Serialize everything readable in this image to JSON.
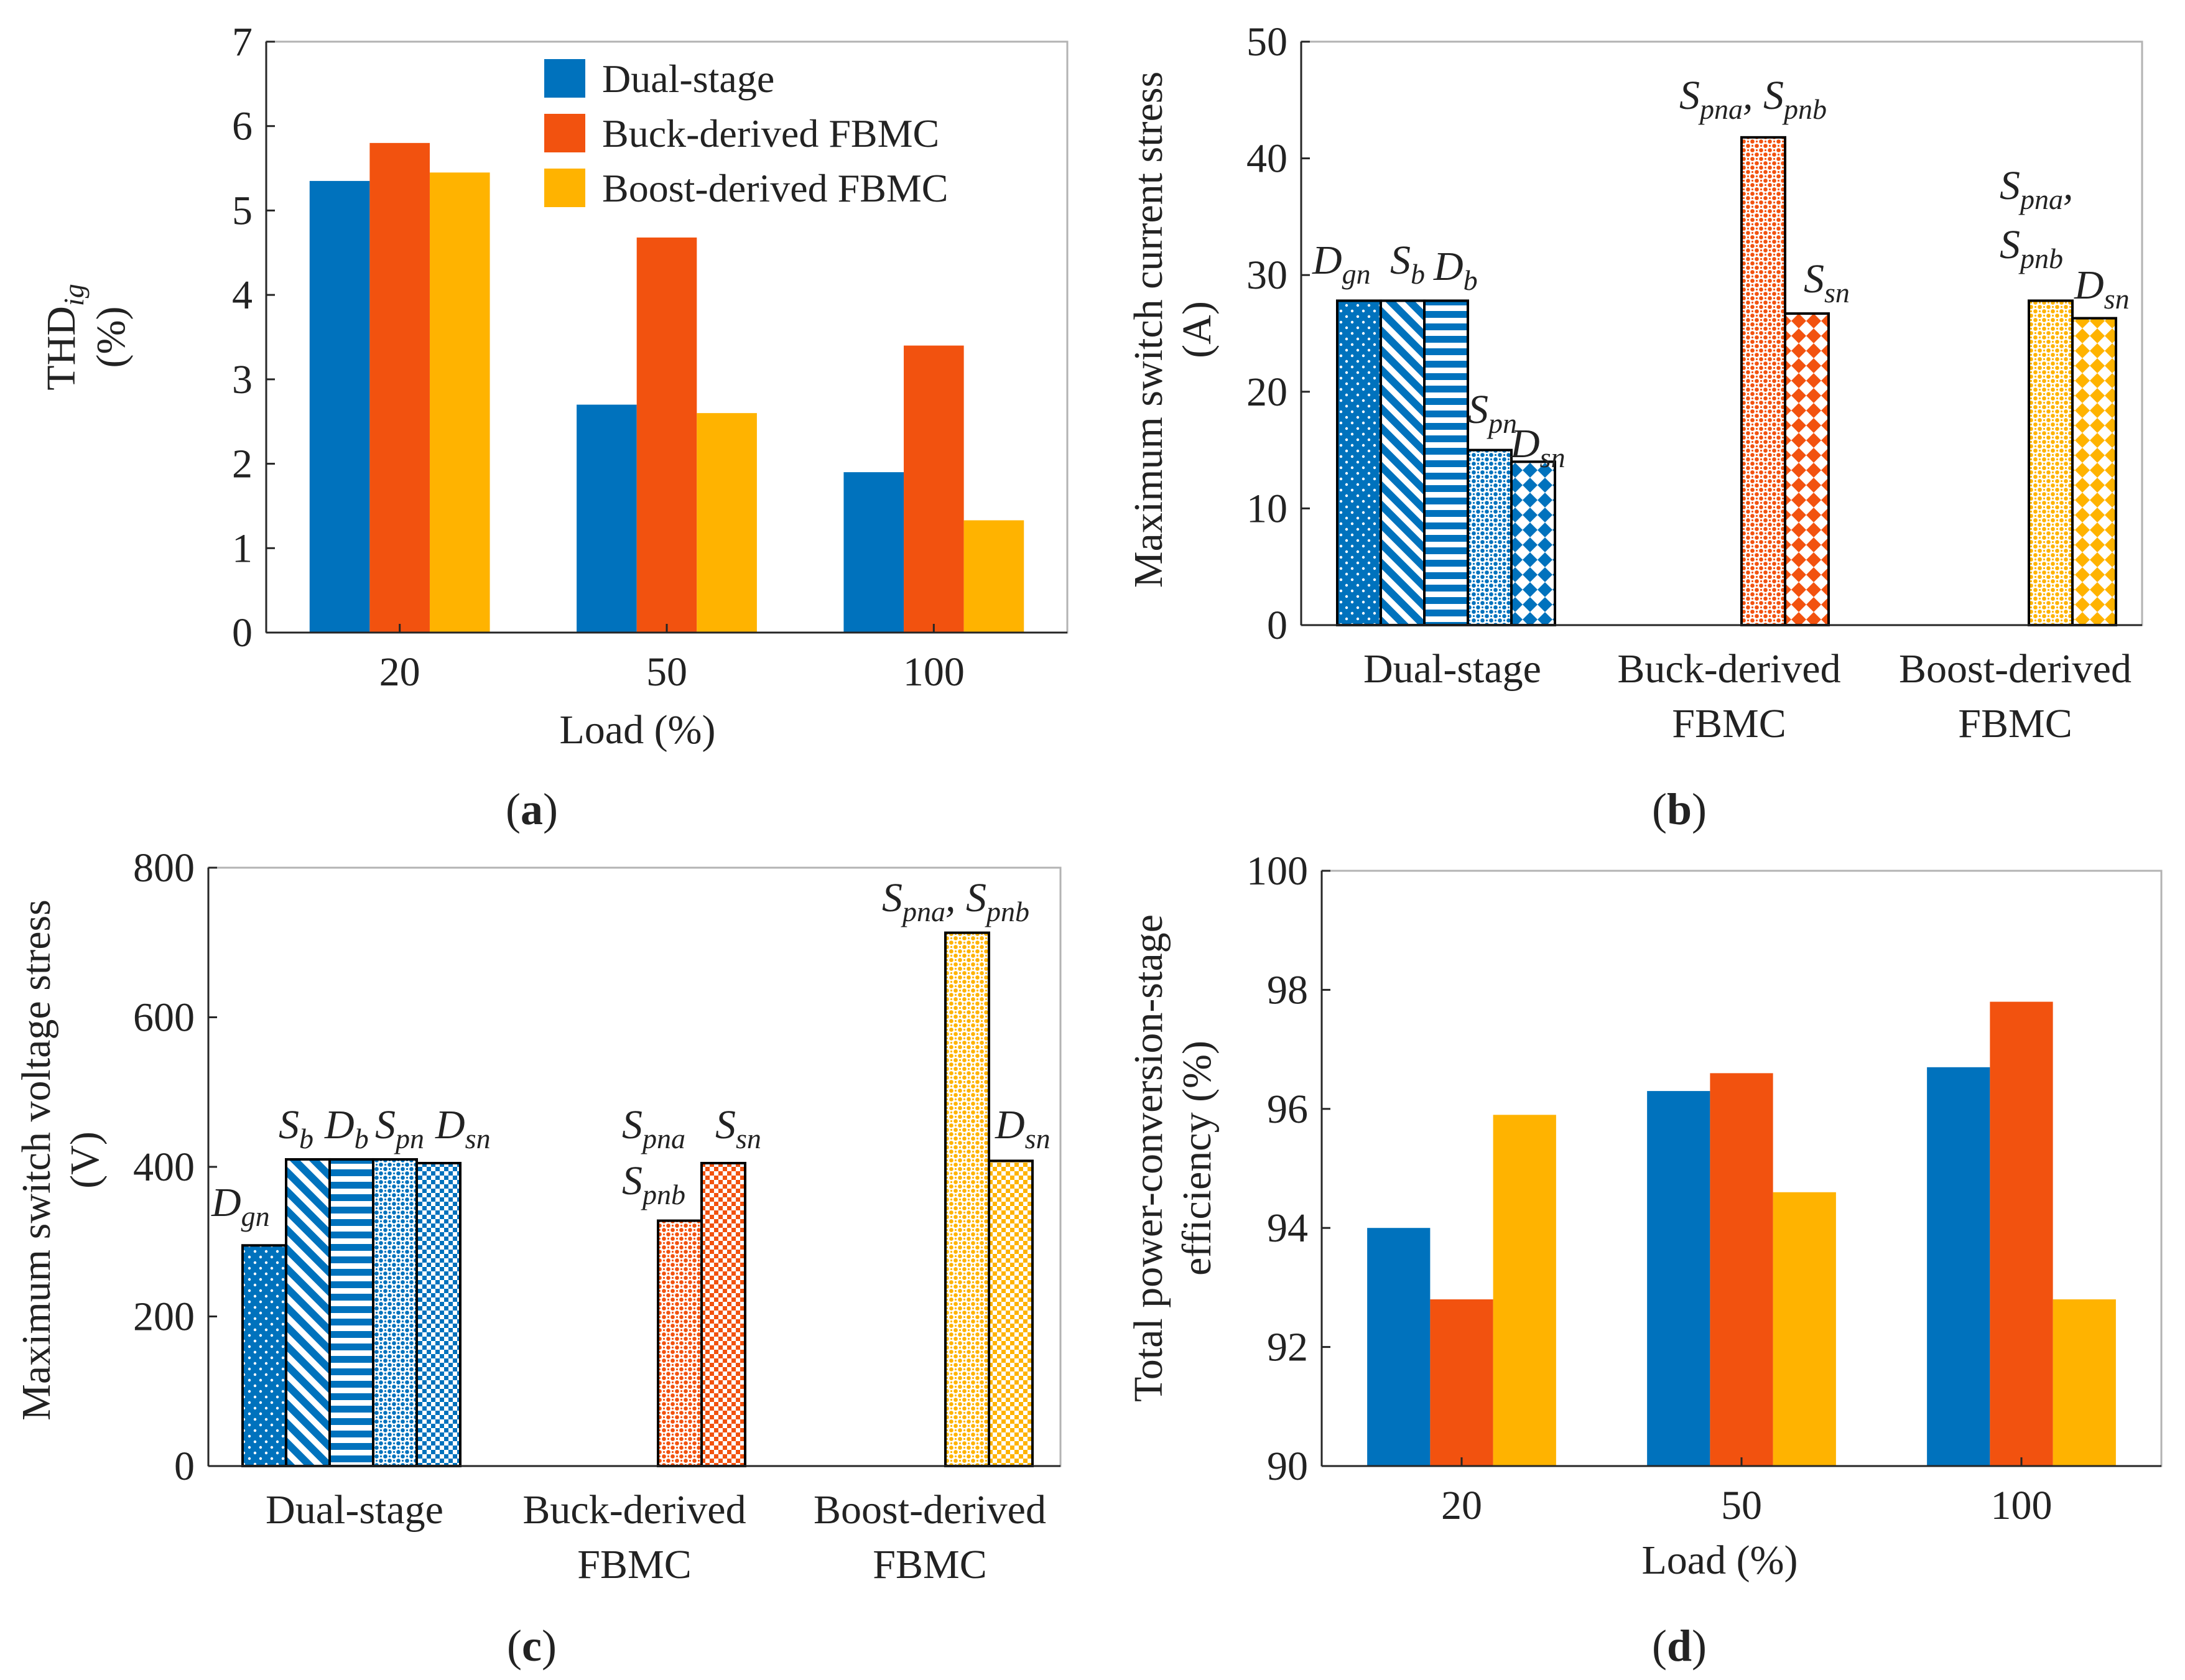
{
  "colors": {
    "blue": "#0072BD",
    "orange": "#F2520F",
    "yellow": "#FFB300"
  },
  "chart_data": [
    {
      "id": "a",
      "type": "bar",
      "caption": "(a)",
      "caption_letter": "a",
      "title": "",
      "xlabel": "Load (%)",
      "ylabel_main": "THD",
      "ylabel_sub": "ig",
      "ylabel_unit": "(%)",
      "ylim": [
        0,
        7
      ],
      "yticks": [
        "0",
        "1",
        "2",
        "3",
        "4",
        "5",
        "6",
        "7"
      ],
      "categories": [
        "20",
        "50",
        "100"
      ],
      "legend_position": "top-right",
      "series": [
        {
          "name": "Dual-stage",
          "color": "#0072BD",
          "values": [
            5.35,
            2.7,
            1.9
          ]
        },
        {
          "name": "Buck-derived  FBMC",
          "color": "#F2520F",
          "values": [
            5.8,
            4.68,
            3.4
          ]
        },
        {
          "name": "Boost-derived  FBMC",
          "color": "#FFB300",
          "values": [
            5.45,
            2.6,
            1.33
          ]
        }
      ]
    },
    {
      "id": "b",
      "type": "bar",
      "caption": "(b)",
      "caption_letter": "b",
      "title": "",
      "xlabel": "",
      "ylabel": "Maximum  switch  current  stress",
      "ylabel_unit": "(A)",
      "ylim": [
        0,
        50
      ],
      "yticks": [
        "0",
        "10",
        "20",
        "30",
        "40",
        "50"
      ],
      "groups": [
        {
          "label_lines": [
            "Dual-stage"
          ],
          "color": "#0072BD",
          "values": [
            27.8,
            27.8,
            27.8,
            15,
            14
          ]
        },
        {
          "label_lines": [
            "Buck-derived",
            "FBMC"
          ],
          "color": "#F2520F",
          "values": [
            41.8,
            26.7
          ]
        },
        {
          "label_lines": [
            "Boost-derived",
            "FBMC"
          ],
          "color": "#FFB300",
          "values": [
            27.8,
            26.3
          ]
        }
      ],
      "annotations": [
        {
          "text": "D",
          "sub": "gn"
        },
        {
          "text": "S",
          "sub": "b"
        },
        {
          "text": "D",
          "sub": "b"
        },
        {
          "text": "S",
          "sub": "pn"
        },
        {
          "text": "D",
          "sub": "sn"
        },
        {
          "text": "S",
          "sub": "pna",
          "text2": ", S",
          "sub2": "pnb"
        },
        {
          "text": "S",
          "sub": "sn"
        },
        {
          "text": "S",
          "sub": "pna",
          "text2": ","
        },
        {
          "text": "S",
          "sub": "pnb"
        },
        {
          "text": "D",
          "sub": "sn"
        }
      ]
    },
    {
      "id": "c",
      "type": "bar",
      "caption": "(c)",
      "caption_letter": "c",
      "title": "",
      "xlabel": "",
      "ylabel": "Maximum  switch  voltage  stress",
      "ylabel_unit": "(V)",
      "ylim": [
        0,
        800
      ],
      "yticks": [
        "0",
        "200",
        "400",
        "600",
        "800"
      ],
      "groups": [
        {
          "label_lines": [
            "Dual-stage"
          ],
          "color": "#0072BD",
          "values": [
            295,
            410,
            410,
            410,
            405
          ]
        },
        {
          "label_lines": [
            "Buck-derived",
            "FBMC"
          ],
          "color": "#F2520F",
          "values": [
            328,
            405
          ]
        },
        {
          "label_lines": [
            "Boost-derived",
            "FBMC"
          ],
          "color": "#FFB300",
          "values": [
            713,
            408
          ]
        }
      ],
      "annotations": [
        {
          "text": "D",
          "sub": "gn"
        },
        {
          "text": "S",
          "sub": "b"
        },
        {
          "text": "D",
          "sub": "b"
        },
        {
          "text": "S",
          "sub": "pn"
        },
        {
          "text": "D",
          "sub": "sn"
        },
        {
          "text": "S",
          "sub": "pna"
        },
        {
          "text": "S",
          "sub": "pnb"
        },
        {
          "text": "S",
          "sub": "sn"
        },
        {
          "text": "S",
          "sub": "pna",
          "text2": ", S",
          "sub2": "pnb"
        },
        {
          "text": "D",
          "sub": "sn"
        }
      ]
    },
    {
      "id": "d",
      "type": "bar",
      "caption": "(d)",
      "caption_letter": "d",
      "title": "",
      "xlabel": "Load (%)",
      "ylabel": "Total power-conversion-stage",
      "ylabel2": "efficiency  (%)",
      "ylim": [
        90,
        100
      ],
      "yticks": [
        "90",
        "92",
        "94",
        "96",
        "98",
        "100"
      ],
      "categories": [
        "20",
        "50",
        "100"
      ],
      "series": [
        {
          "name": "Dual-stage",
          "color": "#0072BD",
          "values": [
            94.0,
            96.3,
            96.7
          ]
        },
        {
          "name": "Buck-derived  FBMC",
          "color": "#F2520F",
          "values": [
            92.8,
            96.6,
            97.8
          ]
        },
        {
          "name": "Boost-derived  FBMC",
          "color": "#FFB300",
          "values": [
            95.9,
            94.6,
            92.8
          ]
        }
      ]
    }
  ]
}
